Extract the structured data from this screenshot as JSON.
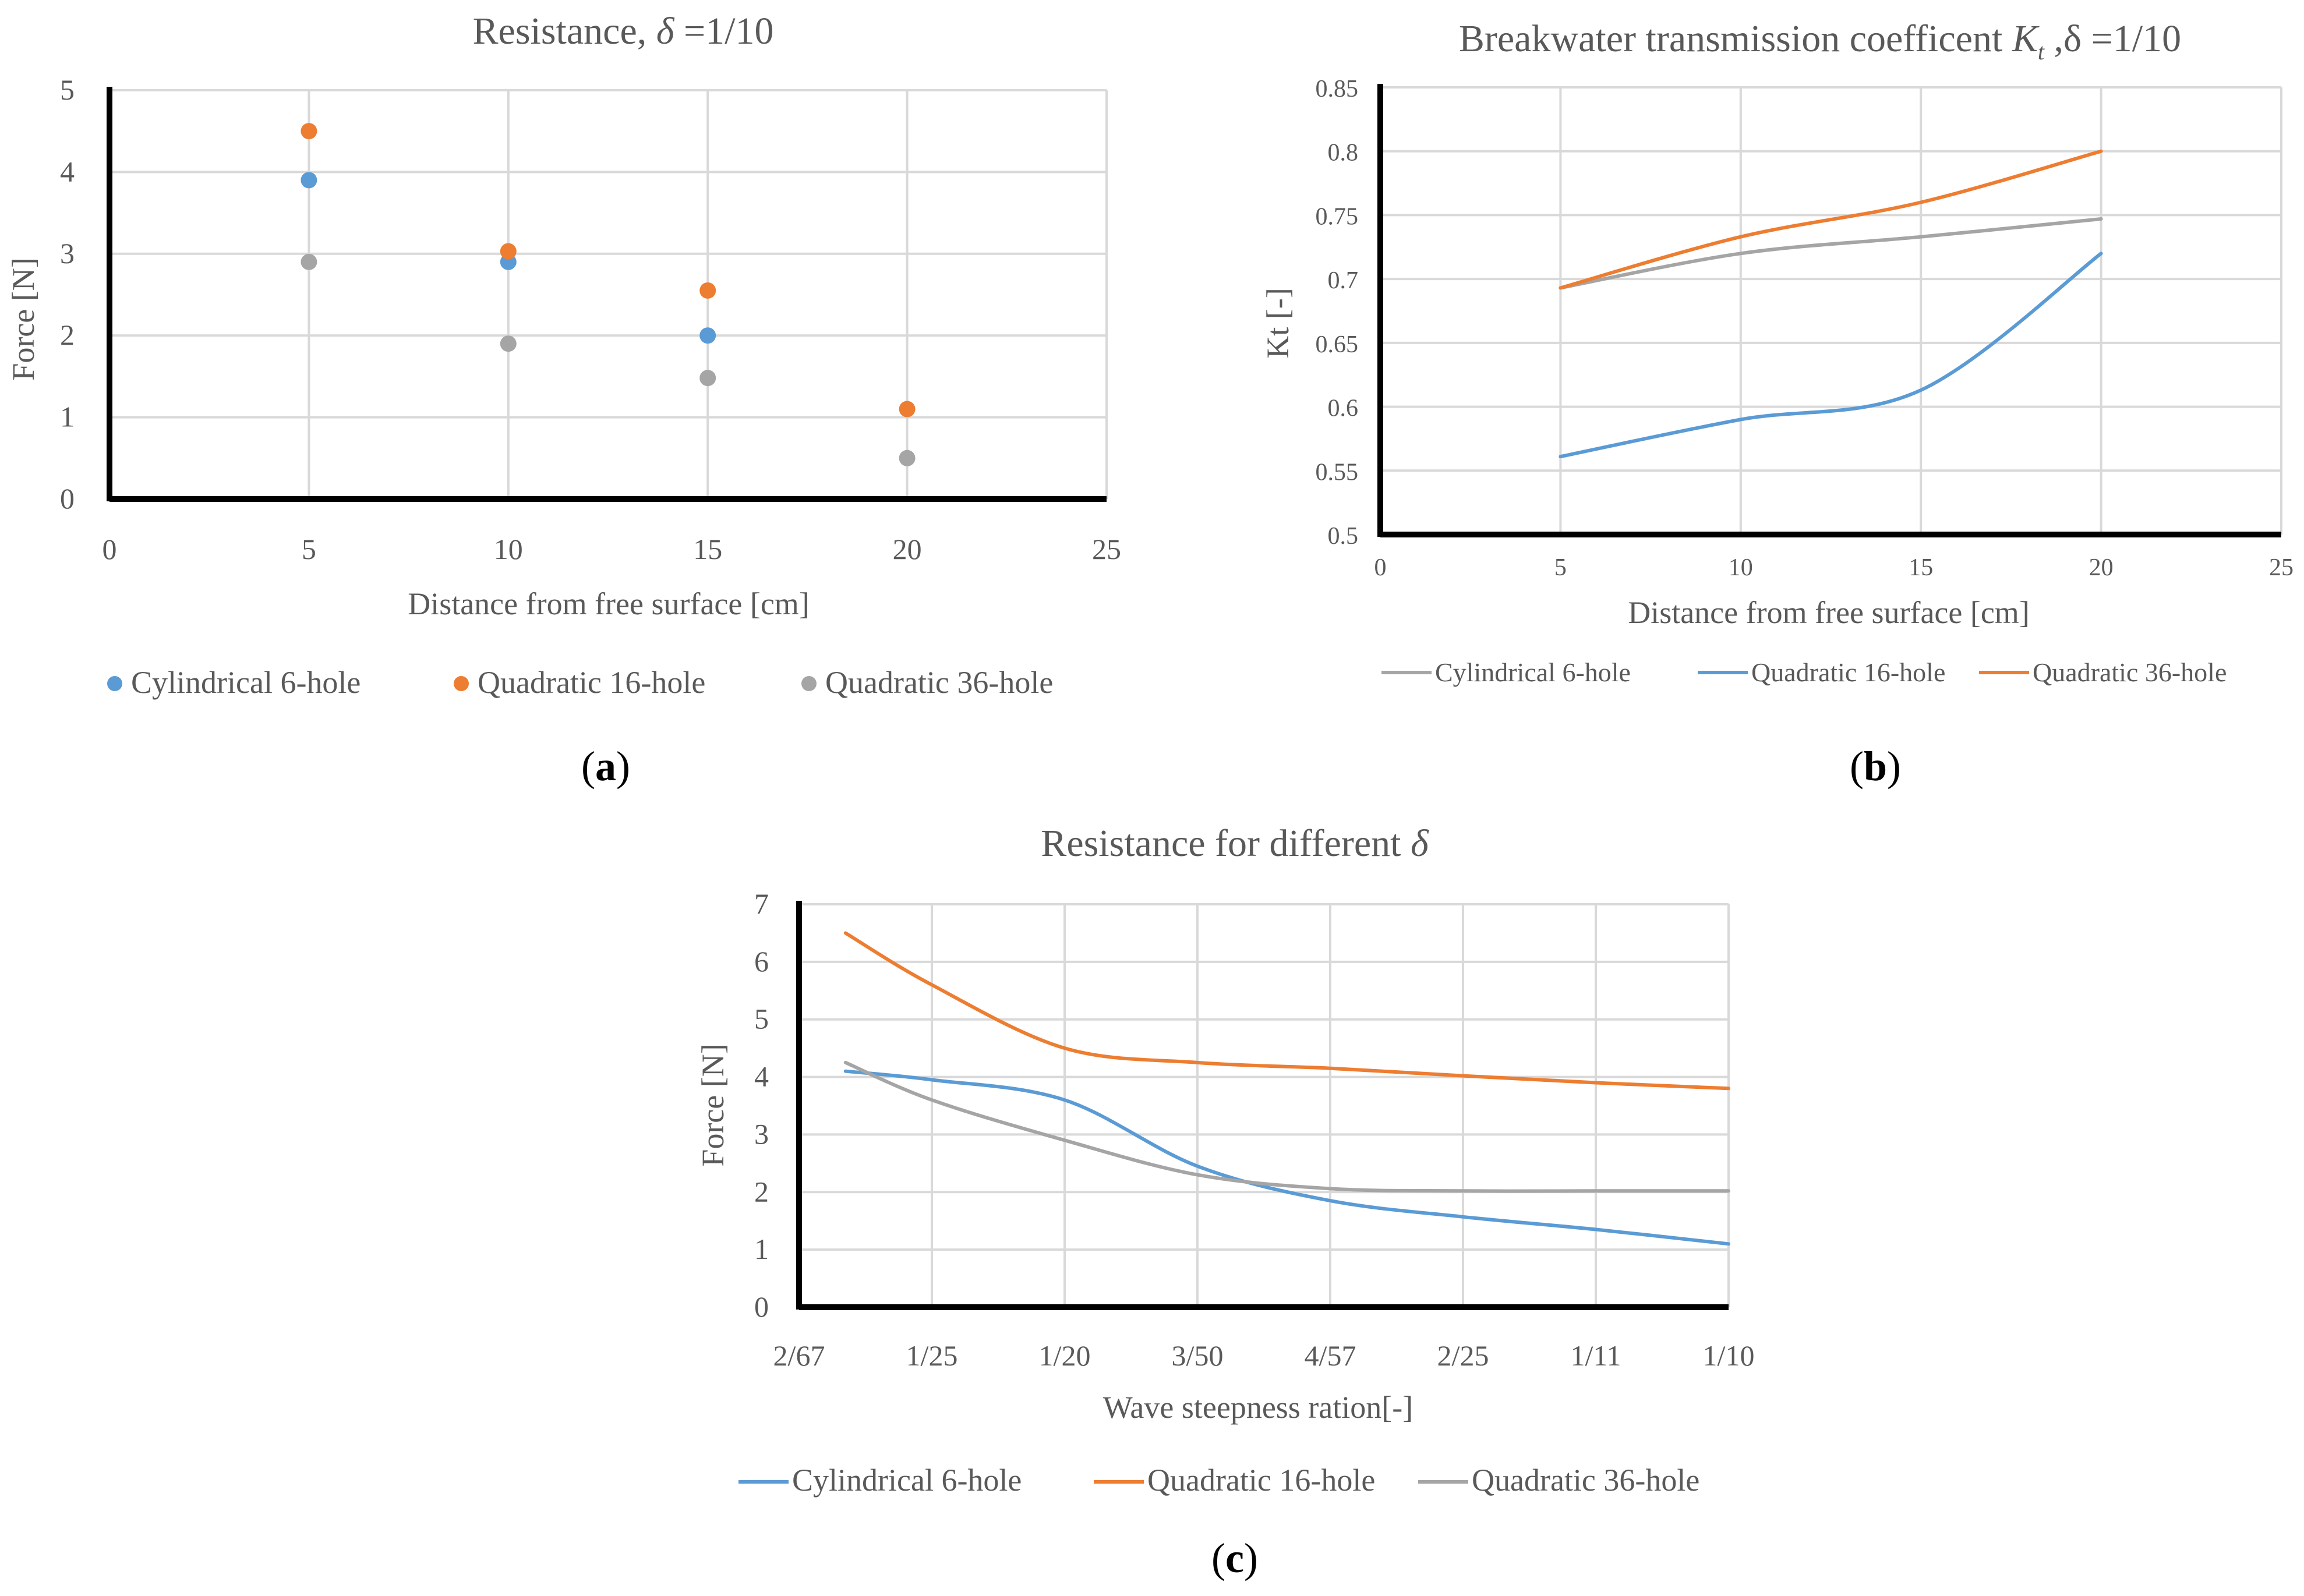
{
  "colors": {
    "blue": "#5b9bd5",
    "orange": "#ed7d31",
    "gray": "#a5a5a5"
  },
  "panels": {
    "a": "(a)",
    "b": "(b)",
    "c": "(c)"
  },
  "chart_data": [
    {
      "id": "a",
      "type": "scatter",
      "title": "Resistance,",
      "title_delta": "δ",
      "title_suffix": " =1/10",
      "xlabel": "Distance from free surface [cm]",
      "ylabel": "Force [N]",
      "xlim": [
        0,
        25
      ],
      "ylim": [
        0,
        5
      ],
      "xticks": [
        "0",
        "5",
        "10",
        "15",
        "20",
        "25"
      ],
      "yticks": [
        "0",
        "1",
        "2",
        "3",
        "4",
        "5"
      ],
      "legend": "bottom",
      "x": [
        5,
        10,
        15,
        20
      ],
      "series": [
        {
          "name": "Cylindrical 6-hole",
          "color": "#5b9bd5",
          "values": [
            3.9,
            2.9,
            2.0,
            null
          ]
        },
        {
          "name": "Quadratic 16-hole",
          "color": "#ed7d31",
          "values": [
            4.5,
            3.03,
            2.55,
            1.1
          ]
        },
        {
          "name": "Quadratic 36-hole",
          "color": "#a5a5a5",
          "values": [
            2.9,
            1.9,
            1.48,
            0.5
          ]
        }
      ]
    },
    {
      "id": "b",
      "type": "line",
      "title": "Breakwater transmission coefficent",
      "title_var": "K",
      "title_sub": "t",
      "title_suffix": " ,δ =1/10",
      "xlabel": "Distance from free surface [cm]",
      "ylabel": "Kt [-]",
      "xlim": [
        0,
        25
      ],
      "ylim": [
        0.5,
        0.85
      ],
      "xticks": [
        "0",
        "5",
        "10",
        "15",
        "20",
        "25"
      ],
      "yticks": [
        "0.5",
        "0.55",
        "0.6",
        "0.65",
        "0.7",
        "0.75",
        "0.8",
        "0.85"
      ],
      "legend": "bottom",
      "x": [
        5,
        10,
        15,
        20
      ],
      "series": [
        {
          "name": "Cylindrical 6-hole",
          "color": "#a5a5a5",
          "values": [
            0.693,
            0.72,
            0.733,
            0.747
          ]
        },
        {
          "name": "Quadratic 16-hole",
          "color": "#5b9bd5",
          "values": [
            0.561,
            0.59,
            0.613,
            0.72
          ]
        },
        {
          "name": "Quadratic 36-hole",
          "color": "#ed7d31",
          "values": [
            0.693,
            0.733,
            0.76,
            0.8
          ]
        }
      ]
    },
    {
      "id": "c",
      "type": "line",
      "title": "Resistance for different",
      "title_delta": "δ",
      "xlabel": "Wave steepness ration[-]",
      "ylabel": "Force [N]",
      "ylim": [
        0,
        7
      ],
      "categories": [
        "2/67",
        "1/25",
        "1/20",
        "3/50",
        "4/57",
        "2/25",
        "1/11",
        "1/10"
      ],
      "yticks": [
        "0",
        "1",
        "2",
        "3",
        "4",
        "5",
        "6",
        "7"
      ],
      "legend": "bottom",
      "x": [
        0.35,
        1,
        2,
        3,
        4,
        5,
        6,
        7
      ],
      "series": [
        {
          "name": "Cylindrical 6-hole",
          "color": "#5b9bd5",
          "values": [
            4.1,
            3.95,
            3.6,
            2.45,
            1.85,
            1.57,
            1.35,
            1.1
          ]
        },
        {
          "name": "Quadratic 16-hole",
          "color": "#ed7d31",
          "values": [
            6.5,
            5.6,
            4.5,
            4.25,
            4.15,
            4.02,
            3.9,
            3.8
          ]
        },
        {
          "name": "Quadratic 36-hole",
          "color": "#a5a5a5",
          "values": [
            4.25,
            3.6,
            2.9,
            2.3,
            2.06,
            2.02,
            2.02,
            2.02
          ]
        }
      ]
    }
  ]
}
